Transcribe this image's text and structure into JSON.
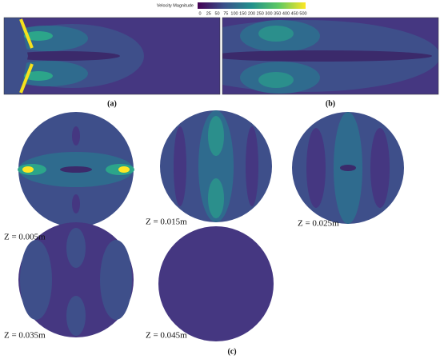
{
  "colorbar": {
    "title": "Velocity Magnitude",
    "ticks": [
      0,
      25,
      50,
      75,
      100,
      150,
      200,
      250,
      300,
      350,
      400,
      450,
      500
    ]
  },
  "panels": {
    "a": "(a)",
    "b": "(b)",
    "c": "(c)"
  },
  "slices": [
    {
      "label": "Z = 0.005m"
    },
    {
      "label": "Z = 0.015m"
    },
    {
      "label": "Z = 0.025m"
    },
    {
      "label": "Z = 0.035m"
    },
    {
      "label": "Z = 0.045m"
    }
  ]
}
